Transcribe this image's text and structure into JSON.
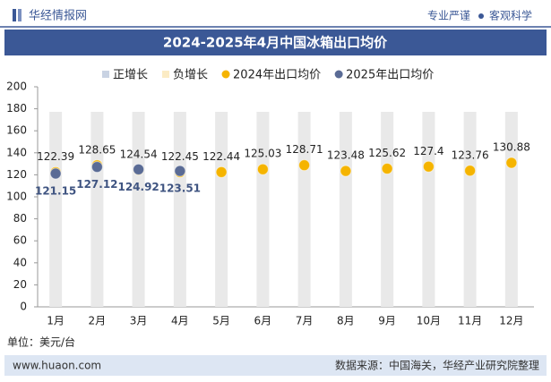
{
  "header": {
    "logo": "华经情报网",
    "slogan": [
      "专业严谨",
      "客观科学"
    ]
  },
  "chart_data": {
    "type": "line",
    "title": "2024-2025年4月中国冰箱出口均价",
    "categories": [
      "1月",
      "2月",
      "3月",
      "4月",
      "5月",
      "6月",
      "7月",
      "8月",
      "9月",
      "10月",
      "11月",
      "12月"
    ],
    "series": [
      {
        "name": "正增长",
        "color": "#c9d3e3",
        "values": [
          null,
          null,
          null,
          null,
          null,
          null,
          null,
          null,
          null,
          null,
          null,
          null
        ]
      },
      {
        "name": "负增长",
        "color": "#fbebc4",
        "values": [
          null,
          null,
          null,
          null,
          null,
          null,
          null,
          null,
          null,
          null,
          null,
          null
        ]
      },
      {
        "name": "2024年出口均价",
        "color": "#f5b400",
        "values": [
          122.39,
          128.65,
          124.54,
          122.45,
          122.44,
          125.03,
          128.71,
          123.48,
          125.62,
          127.4,
          123.76,
          130.88
        ]
      },
      {
        "name": "2025年出口均价",
        "color": "#5a6b95",
        "values": [
          121.15,
          127.12,
          124.92,
          123.51,
          null,
          null,
          null,
          null,
          null,
          null,
          null,
          null
        ]
      }
    ],
    "ylim": [
      0,
      200
    ],
    "yticks": [
      0,
      20,
      40,
      60,
      80,
      100,
      120,
      140,
      160,
      180,
      200
    ],
    "unit_note": "单位：美元/台"
  },
  "footer": {
    "website": "www.huaon.com",
    "source": "数据来源：中国海关，华经产业研究院整理"
  }
}
